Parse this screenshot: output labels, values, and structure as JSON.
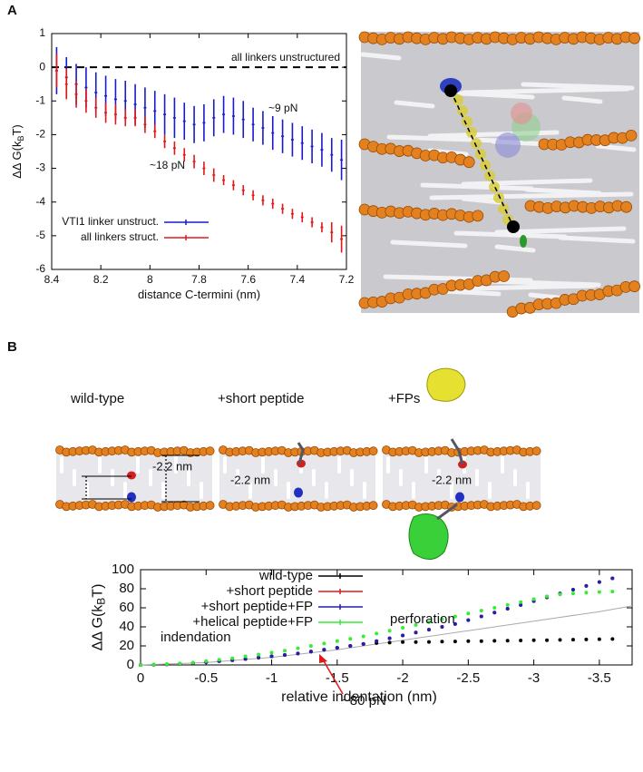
{
  "panel_labels": [
    "A",
    "B"
  ],
  "images": {
    "labels": [
      "wild-type",
      "+short peptide",
      "+FPs"
    ],
    "depths": [
      "-2.2 nm",
      "-2.2 nm",
      "-2.2 nm"
    ]
  },
  "chart_data": [
    {
      "type": "errorbar",
      "xlabel": "distance C-termini (nm)",
      "ylabel": [
        "ΔΔ G(k",
        "B",
        "T)"
      ],
      "x": [
        8.38,
        8.34,
        8.3,
        8.26,
        8.22,
        8.18,
        8.14,
        8.1,
        8.06,
        8.02,
        7.98,
        7.94,
        7.9,
        7.86,
        7.82,
        7.78,
        7.74,
        7.7,
        7.66,
        7.62,
        7.58,
        7.54,
        7.5,
        7.46,
        7.42,
        7.38,
        7.34,
        7.3,
        7.26,
        7.22
      ],
      "series": [
        {
          "name": "VTI1 linker unstruct.",
          "color": "#1a1acc",
          "values": [
            -0.1,
            -0.3,
            -0.5,
            -0.6,
            -0.75,
            -0.85,
            -0.95,
            -1.0,
            -1.1,
            -1.2,
            -1.3,
            -1.4,
            -1.5,
            -1.6,
            -1.7,
            -1.65,
            -1.5,
            -1.4,
            -1.45,
            -1.55,
            -1.7,
            -1.8,
            -1.95,
            -2.05,
            -2.15,
            -2.25,
            -2.35,
            -2.45,
            -2.6,
            -2.75
          ],
          "errors": [
            0.7,
            0.6,
            0.6,
            0.6,
            0.6,
            0.6,
            0.6,
            0.6,
            0.6,
            0.6,
            0.6,
            0.6,
            0.6,
            0.55,
            0.55,
            0.55,
            0.55,
            0.55,
            0.55,
            0.55,
            0.5,
            0.5,
            0.5,
            0.5,
            0.5,
            0.5,
            0.5,
            0.5,
            0.5,
            0.6
          ]
        },
        {
          "name": "all linkers struct.",
          "color": "#e01818",
          "values": [
            -0.1,
            -0.5,
            -0.8,
            -1.0,
            -1.2,
            -1.35,
            -1.4,
            -1.5,
            -1.5,
            -1.7,
            -1.9,
            -2.2,
            -2.4,
            -2.6,
            -2.8,
            -3.0,
            -3.2,
            -3.35,
            -3.5,
            -3.65,
            -3.8,
            -3.95,
            -4.05,
            -4.2,
            -4.35,
            -4.45,
            -4.6,
            -4.75,
            -4.9,
            -5.1
          ],
          "errors": [
            0.5,
            0.45,
            0.4,
            0.35,
            0.3,
            0.3,
            0.3,
            0.25,
            0.25,
            0.25,
            0.2,
            0.2,
            0.2,
            0.2,
            0.2,
            0.2,
            0.2,
            0.15,
            0.15,
            0.15,
            0.15,
            0.15,
            0.15,
            0.15,
            0.15,
            0.15,
            0.15,
            0.15,
            0.3,
            0.4
          ]
        }
      ],
      "reference_line": 0,
      "annotations": [
        {
          "text": "all linkers unstructured",
          "color": "#000000"
        },
        {
          "text": "~9 pN",
          "color": "#1a1acc"
        },
        {
          "text": "~18 pN",
          "color": "#e01818"
        }
      ],
      "xlim": [
        8.4,
        7.2
      ],
      "xticks": [
        8.4,
        8.2,
        8,
        7.8,
        7.6,
        7.4,
        7.2
      ],
      "ylim": [
        -6,
        1
      ],
      "yticks": [
        -6,
        -5,
        -4,
        -3,
        -2,
        -1,
        0,
        1
      ],
      "legend": "bottom-left"
    },
    {
      "type": "line",
      "xlabel": "relative indentation (nm)",
      "ylabel": [
        "ΔΔ G(k",
        "B",
        "T)"
      ],
      "x": [
        0,
        -0.1,
        -0.2,
        -0.3,
        -0.4,
        -0.5,
        -0.6,
        -0.7,
        -0.8,
        -0.9,
        -1,
        -1.1,
        -1.2,
        -1.3,
        -1.4,
        -1.5,
        -1.6,
        -1.7,
        -1.8,
        -1.9,
        -2,
        -2.1,
        -2.2,
        -2.3,
        -2.4,
        -2.5,
        -2.6,
        -2.7,
        -2.8,
        -2.9,
        -3,
        -3.1,
        -3.2,
        -3.3,
        -3.4,
        -3.5,
        -3.6
      ],
      "series": [
        {
          "color": "#aaaaaa",
          "style": "line",
          "x": [
            0,
            -0.5,
            -1,
            -1.5,
            -2,
            -2.5,
            -3,
            -3.5,
            -3.75
          ],
          "values": [
            0,
            2.5,
            8,
            16,
            26,
            36,
            46,
            56,
            62
          ]
        },
        {
          "name": "wild-type",
          "color": "#000000",
          "style": "dots",
          "values": [
            0,
            0.2,
            0.6,
            1.2,
            2,
            3,
            4,
            5,
            6.3,
            7.7,
            9,
            10.5,
            12,
            14,
            16,
            18,
            20,
            22,
            23,
            23.5,
            24,
            24,
            24.2,
            24.5,
            24.7,
            25,
            25,
            25.3,
            25.5,
            25.7,
            26,
            26,
            26.3,
            26.5,
            26.8,
            27,
            27.3
          ]
        },
        {
          "name": "+short peptide",
          "color": "#e01818",
          "style": "dots",
          "values": [
            0,
            0.2,
            0.6,
            1.2,
            2,
            3,
            4,
            5,
            6.3,
            7.7,
            9,
            10.5,
            12,
            14,
            16,
            18,
            20,
            22,
            25,
            28,
            31,
            34,
            37,
            40,
            43,
            47,
            51,
            55,
            59,
            63,
            67,
            71,
            75,
            79,
            83,
            87,
            91
          ]
        },
        {
          "name": "+short peptide+FP",
          "color": "#2020b0",
          "style": "dots",
          "values": [
            0,
            0.2,
            0.6,
            1.2,
            2,
            3,
            4,
            5,
            6.3,
            7.7,
            9,
            10.5,
            12,
            14,
            16,
            18,
            20,
            22,
            25,
            28,
            31,
            34,
            37,
            40,
            43,
            47,
            51,
            55,
            59,
            63,
            67,
            71,
            75,
            79,
            83,
            87,
            91
          ]
        },
        {
          "name": "+helical peptide+FP",
          "color": "#33ee33",
          "style": "dots",
          "values": [
            0,
            0.3,
            0.8,
            1.5,
            2.5,
            4,
            5.5,
            7,
            9,
            11,
            13,
            15,
            17.5,
            20,
            22.5,
            25,
            27.5,
            30,
            33,
            36,
            39,
            42,
            45,
            48,
            51,
            54,
            57,
            60,
            63,
            66,
            69,
            72,
            74,
            75,
            76,
            76.5,
            77
          ]
        }
      ],
      "annotations": [
        {
          "text": "indendation",
          "color": "#000000"
        },
        {
          "text": "perforation",
          "color": "#000000"
        },
        {
          "text": "~80 pN",
          "color": "#e01818"
        }
      ],
      "xlim": [
        0,
        -3.75
      ],
      "xticks": [
        0,
        -0.5,
        -1,
        -1.5,
        -2,
        -2.5,
        -3,
        -3.5
      ],
      "ylim": [
        0,
        100
      ],
      "yticks": [
        0,
        20,
        40,
        60,
        80,
        100
      ],
      "legend": "top-left"
    }
  ]
}
